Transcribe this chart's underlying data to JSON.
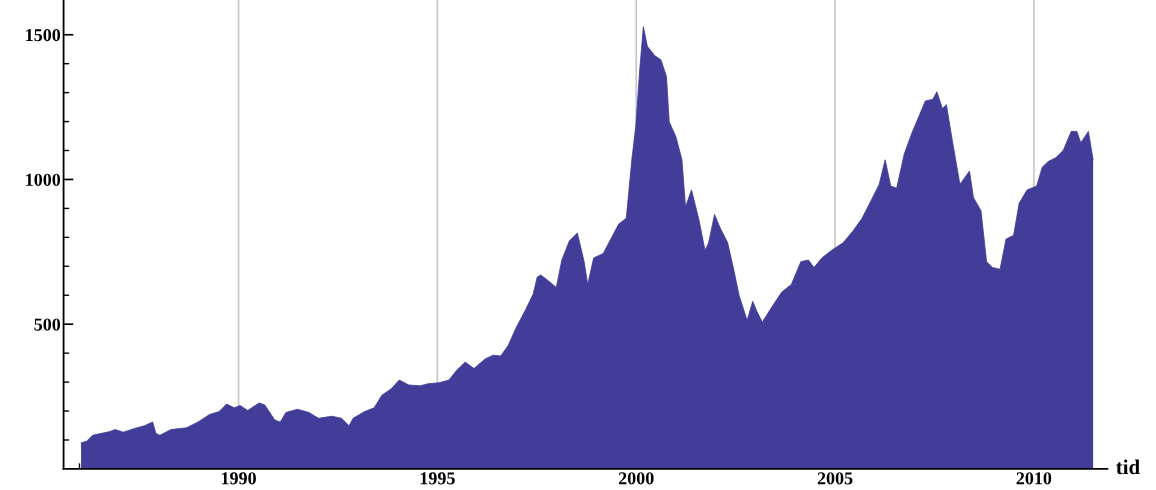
{
  "chart_data": {
    "type": "area",
    "xlabel": "tid",
    "x": [
      1986.04,
      1986.18,
      1986.33,
      1986.76,
      1986.9,
      1987.1,
      1987.39,
      1987.63,
      1987.84,
      1987.92,
      1988.02,
      1988.3,
      1988.69,
      1988.98,
      1989.27,
      1989.51,
      1989.7,
      1989.89,
      1990.04,
      1990.23,
      1990.52,
      1990.66,
      1990.91,
      1991.05,
      1991.19,
      1991.48,
      1991.77,
      1992.01,
      1992.35,
      1992.59,
      1992.78,
      1992.88,
      1993.17,
      1993.41,
      1993.6,
      1993.84,
      1994.04,
      1994.28,
      1994.57,
      1994.76,
      1995.05,
      1995.29,
      1995.48,
      1995.7,
      1995.92,
      1996.2,
      1996.4,
      1996.59,
      1996.78,
      1996.97,
      1997.22,
      1997.41,
      1997.51,
      1997.6,
      1997.79,
      1997.99,
      1998.13,
      1998.32,
      1998.52,
      1998.69,
      1998.78,
      1998.93,
      1999.17,
      1999.36,
      1999.56,
      1999.75,
      1999.89,
      1999.99,
      2000.09,
      2000.18,
      2000.28,
      2000.47,
      2000.62,
      2000.76,
      2000.83,
      2001.0,
      2001.15,
      2001.24,
      2001.39,
      2001.58,
      2001.73,
      2001.82,
      2001.97,
      2002.11,
      2002.3,
      2002.45,
      2002.59,
      2002.79,
      2002.93,
      2003.03,
      2003.17,
      2003.41,
      2003.66,
      2003.9,
      2004.14,
      2004.33,
      2004.47,
      2004.67,
      2004.91,
      2005.2,
      2005.44,
      2005.68,
      2005.92,
      2006.11,
      2006.26,
      2006.4,
      2006.55,
      2006.74,
      2006.93,
      2007.13,
      2007.27,
      2007.46,
      2007.56,
      2007.7,
      2007.8,
      2007.95,
      2008.14,
      2008.38,
      2008.48,
      2008.67,
      2008.81,
      2008.96,
      2009.15,
      2009.3,
      2009.49,
      2009.63,
      2009.83,
      2010.07,
      2010.21,
      2010.36,
      2010.55,
      2010.74,
      2010.94,
      2011.08,
      2011.18,
      2011.37,
      2011.49
    ],
    "series": [
      {
        "color": "#413d99",
        "values": [
          90,
          96,
          116,
          129,
          136,
          127,
          140,
          149,
          162,
          123,
          116,
          136,
          142,
          162,
          188,
          198,
          224,
          211,
          219,
          202,
          228,
          221,
          169,
          162,
          195,
          206,
          195,
          175,
          182,
          175,
          149,
          175,
          198,
          211,
          254,
          277,
          307,
          290,
          287,
          294,
          298,
          307,
          340,
          369,
          347,
          380,
          393,
          390,
          426,
          485,
          551,
          604,
          663,
          670,
          650,
          627,
          722,
          788,
          815,
          716,
          637,
          729,
          744,
          794,
          846,
          866,
          1068,
          1186,
          1382,
          1528,
          1460,
          1427,
          1414,
          1356,
          1199,
          1147,
          1068,
          905,
          964,
          859,
          755,
          781,
          879,
          833,
          781,
          690,
          598,
          513,
          579,
          546,
          507,
          559,
          611,
          637,
          716,
          722,
          696,
          729,
          755,
          781,
          820,
          866,
          931,
          983,
          1068,
          977,
          970,
          1088,
          1160,
          1225,
          1271,
          1277,
          1303,
          1245,
          1258,
          1134,
          983,
          1029,
          938,
          892,
          716,
          696,
          690,
          794,
          807,
          918,
          964,
          977,
          1042,
          1062,
          1075,
          1101,
          1166,
          1166,
          1127,
          1166,
          1068
        ]
      }
    ],
    "xlim": [
      1985.6,
      2011.85
    ],
    "xticks": [
      {
        "value": 1986,
        "label": null
      },
      {
        "value": 1987,
        "label": null
      },
      {
        "value": 1988,
        "label": null
      },
      {
        "value": 1989,
        "label": null
      },
      1990,
      {
        "value": 1991,
        "label": null
      },
      {
        "value": 1992,
        "label": null
      },
      {
        "value": 1993,
        "label": null
      },
      {
        "value": 1994,
        "label": null
      },
      1995,
      {
        "value": 1996,
        "label": null
      },
      {
        "value": 1997,
        "label": null
      },
      {
        "value": 1998,
        "label": null
      },
      {
        "value": 1999,
        "label": null
      },
      2000,
      {
        "value": 2001,
        "label": null
      },
      {
        "value": 2002,
        "label": null
      },
      {
        "value": 2003,
        "label": null
      },
      {
        "value": 2004,
        "label": null
      },
      2005,
      {
        "value": 2006,
        "label": null
      },
      {
        "value": 2007,
        "label": null
      },
      {
        "value": 2008,
        "label": null
      },
      {
        "value": 2009,
        "label": null
      },
      2010,
      {
        "value": 2011,
        "label": null
      }
    ],
    "ylim": [
      0,
      1620
    ],
    "yticks": [
      {
        "value": 100,
        "label": null
      },
      {
        "value": 200,
        "label": null
      },
      {
        "value": 300,
        "label": null
      },
      {
        "value": 400,
        "label": null
      },
      500,
      {
        "value": 600,
        "label": null
      },
      {
        "value": 700,
        "label": null
      },
      {
        "value": 800,
        "label": null
      },
      {
        "value": 900,
        "label": null
      },
      1000,
      {
        "value": 1100,
        "label": null
      },
      {
        "value": 1200,
        "label": null
      },
      {
        "value": 1300,
        "label": null
      },
      {
        "value": 1400,
        "label": null
      },
      1500
    ],
    "grid": "x",
    "marker": "none"
  }
}
